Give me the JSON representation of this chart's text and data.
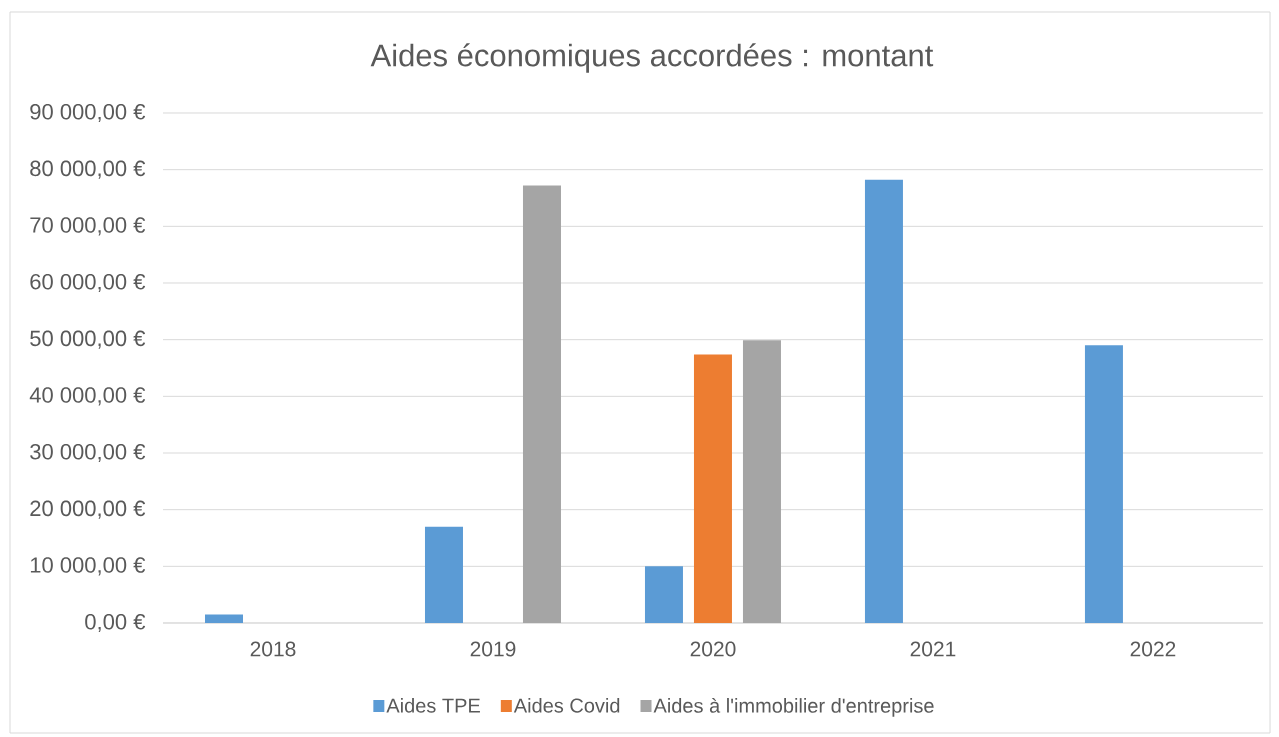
{
  "chart_data": {
    "type": "bar",
    "title": "Aides économiques accordées : montant",
    "categories": [
      "2018",
      "2019",
      "2020",
      "2021",
      "2022"
    ],
    "series": [
      {
        "name": "Aides TPE",
        "color": "#5b9bd5",
        "values": [
          1500,
          17000,
          10000,
          78200,
          49000
        ]
      },
      {
        "name": "Aides Covid",
        "color": "#ed7d31",
        "values": [
          null,
          null,
          47400,
          null,
          null
        ]
      },
      {
        "name": "Aides à l'immobilier d'entreprise",
        "color": "#a5a5a5",
        "values": [
          null,
          77200,
          49900,
          null,
          null
        ]
      }
    ],
    "ylim": [
      0,
      90000
    ],
    "yticks": [
      {
        "value": 0,
        "label": "0,00 €"
      },
      {
        "value": 10000,
        "label": "10 000,00 €"
      },
      {
        "value": 20000,
        "label": "20 000,00 €"
      },
      {
        "value": 30000,
        "label": "30 000,00 €"
      },
      {
        "value": 40000,
        "label": "40 000,00 €"
      },
      {
        "value": 50000,
        "label": "50 000,00 €"
      },
      {
        "value": 60000,
        "label": "60 000,00 €"
      },
      {
        "value": 70000,
        "label": "70 000,00 €"
      },
      {
        "value": 80000,
        "label": "80 000,00 €"
      },
      {
        "value": 90000,
        "label": "90 000,00 €"
      }
    ],
    "grid": "y",
    "legend": "bottom"
  }
}
